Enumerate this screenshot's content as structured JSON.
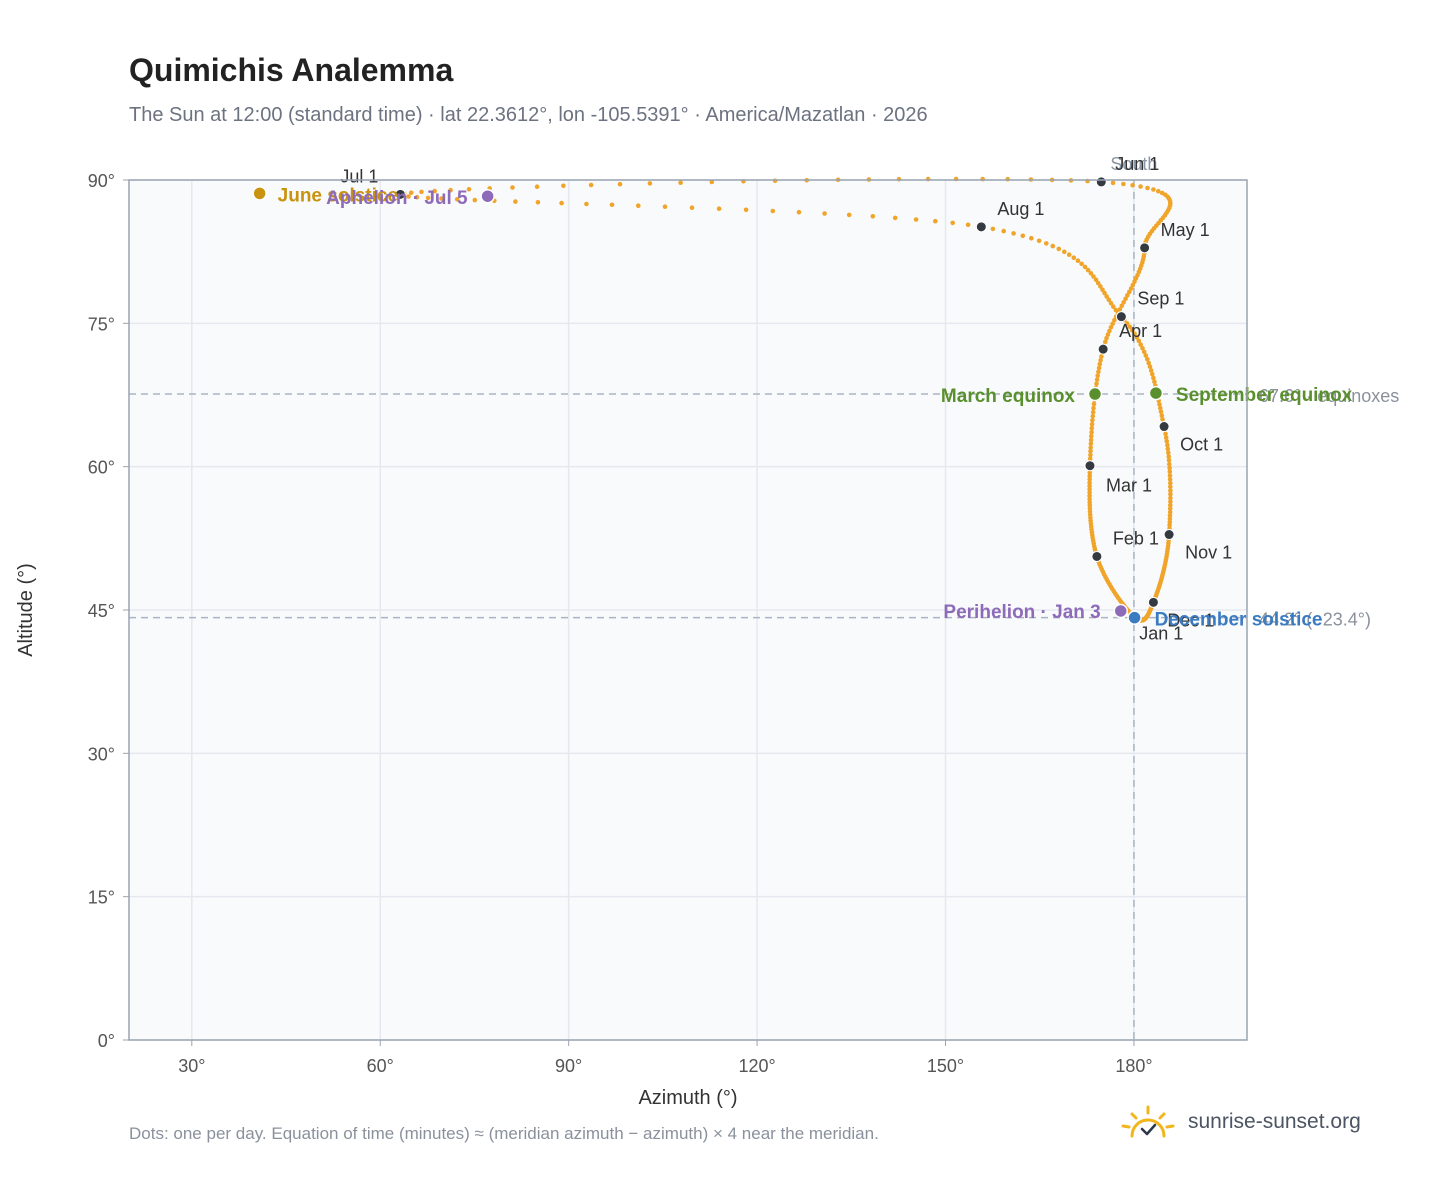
{
  "title": "Quimichis Analemma",
  "subtitle": "The Sun at 12:00 (standard time) · lat 22.3612°, lon -105.5391° · America/Mazatlan · 2026",
  "footnote": "Dots: one per day. Equation of time (minutes) ≈ (meridian azimuth − azimuth) × 4 near the meridian.",
  "brand": "sunrise-sunset.org",
  "colors": {
    "curve": "#f0a52a",
    "month_point": "#343a40",
    "equinox": "#5a8f2e",
    "june_solstice": "#c9930f",
    "december_solstice": "#3b7bc1",
    "apsis": "#8e6bb8",
    "plot_bg": "#f8fafc",
    "grid": "#e5e9ef",
    "frame": "#9aa4b2"
  },
  "chart_data": {
    "type": "scatter",
    "xlabel": "Azimuth (°)",
    "ylabel": "Altitude (°)",
    "xlim": [
      20,
      198
    ],
    "ylim": [
      0,
      90
    ],
    "xticks": [
      30,
      60,
      90,
      120,
      150,
      180
    ],
    "yticks": [
      0,
      15,
      30,
      45,
      60,
      75,
      90
    ],
    "xtick_labels": [
      "30°",
      "60°",
      "90°",
      "120°",
      "150°",
      "180°"
    ],
    "ytick_labels": [
      "0°",
      "15°",
      "30°",
      "45°",
      "60°",
      "75°",
      "90°"
    ],
    "grid": true,
    "meridian": {
      "azimuth": 180,
      "label": "South"
    },
    "reference_lines": [
      {
        "altitude": 67.6,
        "label": "67.6° · equinoxes"
      },
      {
        "altitude": 44.2,
        "label": "44.2° (−23.4°)"
      }
    ],
    "month_points": [
      {
        "label": "Jan 1",
        "az": 180.2,
        "alt": 44.2
      },
      {
        "label": "Feb 1",
        "az": 174.1,
        "alt": 50.6
      },
      {
        "label": "Mar 1",
        "az": 173.0,
        "alt": 60.1
      },
      {
        "label": "Apr 1",
        "az": 175.1,
        "alt": 72.3
      },
      {
        "label": "May 1",
        "az": 181.7,
        "alt": 82.9
      },
      {
        "label": "Jun 1",
        "az": 174.8,
        "alt": 89.8
      },
      {
        "label": "Jul 1",
        "az": 63.2,
        "alt": 88.5
      },
      {
        "label": "Aug 1",
        "az": 155.7,
        "alt": 85.1
      },
      {
        "label": "Sep 1",
        "az": 178.0,
        "alt": 75.7
      },
      {
        "label": "Oct 1",
        "az": 184.8,
        "alt": 64.2
      },
      {
        "label": "Nov 1",
        "az": 185.6,
        "alt": 52.9
      },
      {
        "label": "Dec 1",
        "az": 183.1,
        "alt": 45.8
      }
    ],
    "events": [
      {
        "label": "March equinox",
        "az": 173.8,
        "alt": 67.6,
        "color": "#5a8f2e"
      },
      {
        "label": "September equinox",
        "az": 183.5,
        "alt": 67.7,
        "color": "#5a8f2e"
      },
      {
        "label": "June solstice",
        "az": 40.8,
        "alt": 88.6,
        "color": "#c9930f"
      },
      {
        "label": "December solstice",
        "az": 180.1,
        "alt": 44.2,
        "color": "#3b7bc1"
      },
      {
        "label": "Perihelion · Jan 3",
        "az": 177.9,
        "alt": 44.9,
        "color": "#8e6bb8"
      },
      {
        "label": "Aphelion · Jul 5",
        "az": 77.1,
        "alt": 88.3,
        "color": "#8e6bb8"
      }
    ]
  }
}
